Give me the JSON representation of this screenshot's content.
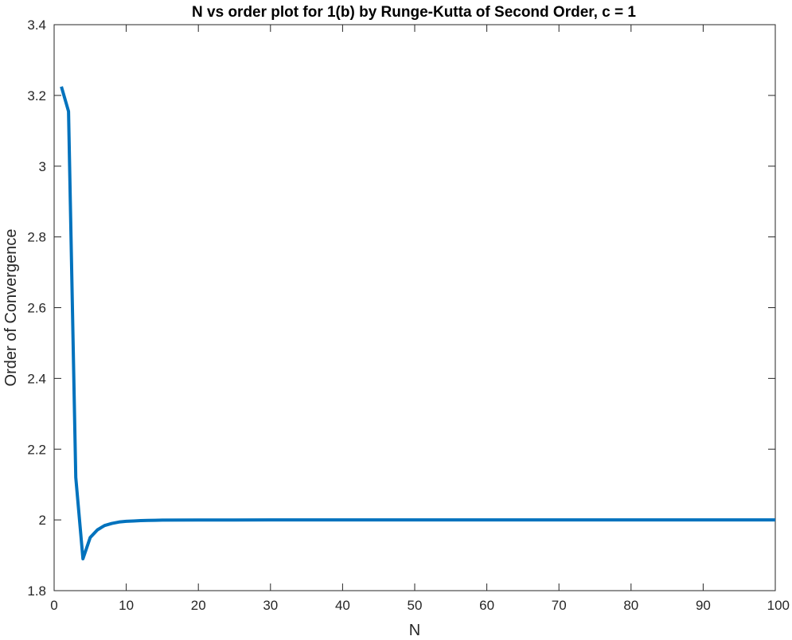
{
  "chart_data": {
    "type": "line",
    "title": "N vs order plot for 1(b) by Runge-Kutta of Second Order, c = 1",
    "xlabel": "N",
    "ylabel": "Order of Convergence",
    "xlim": [
      0,
      100
    ],
    "ylim": [
      1.8,
      3.4
    ],
    "x_ticks": [
      0,
      10,
      20,
      30,
      40,
      50,
      60,
      70,
      80,
      90,
      100
    ],
    "x_tick_labels": [
      "0",
      "10",
      "20",
      "30",
      "40",
      "50",
      "60",
      "70",
      "80",
      "90",
      "100"
    ],
    "y_ticks": [
      1.8,
      2.0,
      2.2,
      2.4,
      2.6,
      2.8,
      3.0,
      3.2,
      3.4
    ],
    "y_tick_labels": [
      "1.8",
      "2",
      "2.2",
      "2.4",
      "2.6",
      "2.8",
      "3",
      "3.2",
      "3.4"
    ],
    "grid": false,
    "series": [
      {
        "color": "#0072BD",
        "x": [
          1,
          2,
          3,
          4,
          5,
          6,
          7,
          8,
          9,
          10,
          11,
          12,
          13,
          14,
          15,
          20,
          25,
          30,
          40,
          50,
          60,
          70,
          80,
          90,
          100
        ],
        "y": [
          3.225,
          3.155,
          2.12,
          1.89,
          1.95,
          1.972,
          1.984,
          1.99,
          1.994,
          1.996,
          1.997,
          1.998,
          1.9985,
          1.999,
          1.9993,
          1.9998,
          1.9999,
          2.0,
          2.0,
          2.0,
          2.0,
          2.0,
          2.0,
          2.0,
          2.0
        ]
      }
    ]
  }
}
